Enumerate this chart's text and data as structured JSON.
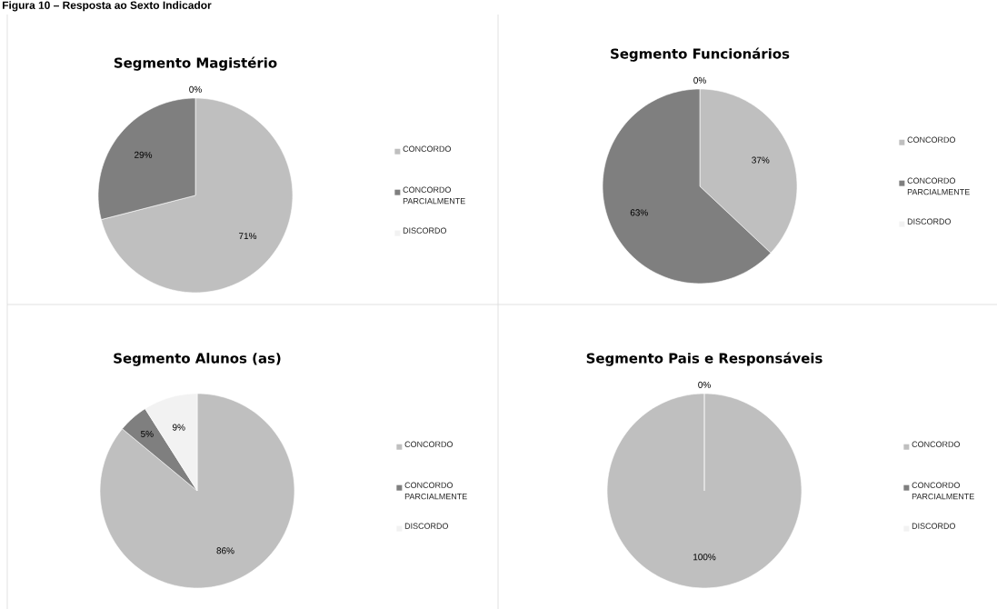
{
  "chart_data": [
    {
      "type": "pie",
      "title": "Segmento Magistério",
      "annotations": [
        "Figura 10 – Resposta ao Sexto Indicador"
      ],
      "categories": [
        "CONCORDO",
        "CONCORDO PARCIALMENTE",
        "DISCORDO"
      ],
      "values": [
        71,
        29,
        0
      ],
      "value_labels": [
        "71%",
        "29%",
        "0%"
      ],
      "colors": [
        "#bfbfbf",
        "#7f7f7f",
        "#f2f2f2"
      ],
      "legend": "right"
    },
    {
      "type": "pie",
      "title": "Segmento Funcionários",
      "categories": [
        "CONCORDO",
        "CONCORDO PARCIALMENTE",
        "DISCORDO"
      ],
      "values": [
        37,
        63,
        0
      ],
      "value_labels": [
        "37%",
        "63%",
        "0%"
      ],
      "colors": [
        "#bfbfbf",
        "#7f7f7f",
        "#f2f2f2"
      ],
      "legend": "right"
    },
    {
      "type": "pie",
      "title": "Segmento Alunos (as)",
      "categories": [
        "CONCORDO",
        "CONCORDO PARCIALMENTE",
        "DISCORDO"
      ],
      "values": [
        86,
        5,
        9
      ],
      "value_labels": [
        "86%",
        "5%",
        "9%"
      ],
      "colors": [
        "#bfbfbf",
        "#7f7f7f",
        "#f2f2f2"
      ],
      "legend": "right"
    },
    {
      "type": "pie",
      "title": "Segmento Pais e Responsáveis",
      "categories": [
        "CONCORDO",
        "CONCORDO PARCIALMENTE",
        "DISCORDO"
      ],
      "values": [
        100,
        0,
        0
      ],
      "value_labels": [
        "100%",
        "0%",
        null
      ],
      "colors": [
        "#bfbfbf",
        "#7f7f7f",
        "#f2f2f2"
      ],
      "legend": "right"
    }
  ]
}
